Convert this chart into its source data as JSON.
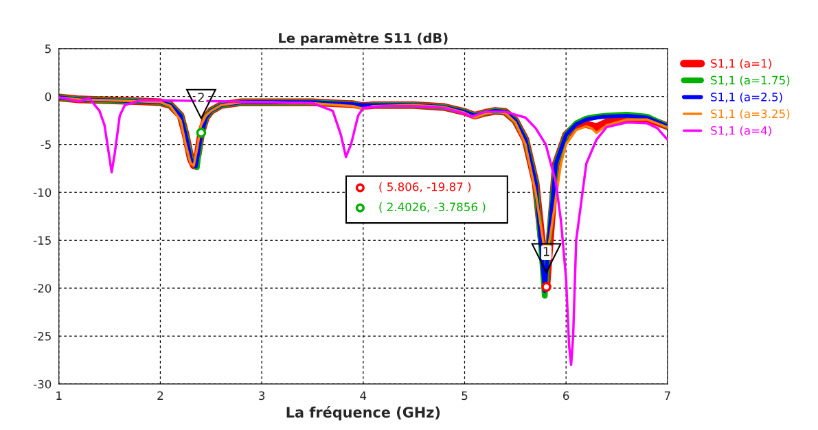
{
  "chart_data": {
    "type": "line",
    "title": "Le paramètre S11 (dB)",
    "xlabel": "La fréquence (GHz)",
    "xlim": [
      1,
      7
    ],
    "xticks": [
      1,
      2,
      3,
      4,
      5,
      6,
      7
    ],
    "ylim": [
      -30,
      5
    ],
    "yticks": [
      -30,
      -25,
      -20,
      -15,
      -10,
      -5,
      0,
      5
    ],
    "grid": true,
    "legend": "right",
    "line_style": "solid",
    "marker": "none",
    "series": [
      {
        "name": "S1,1 (a=1)",
        "color": "#ff0000",
        "x": [
          1.0,
          1.2,
          1.5,
          1.8,
          2.0,
          2.1,
          2.2,
          2.25,
          2.3,
          2.33,
          2.37,
          2.4026,
          2.45,
          2.5,
          2.6,
          2.8,
          3.0,
          3.5,
          3.9,
          4.0,
          4.1,
          4.5,
          4.8,
          5.0,
          5.1,
          5.2,
          5.3,
          5.4,
          5.5,
          5.6,
          5.7,
          5.76,
          5.806,
          5.84,
          5.9,
          6.0,
          6.1,
          6.2,
          6.3,
          6.4,
          6.6,
          6.8,
          7.0
        ],
        "values": [
          -0.1,
          -0.3,
          -0.4,
          -0.5,
          -0.6,
          -0.9,
          -2,
          -4,
          -6.5,
          -7.2,
          -6,
          -3.8,
          -2.2,
          -1.5,
          -0.9,
          -0.6,
          -0.6,
          -0.6,
          -0.8,
          -1.0,
          -0.9,
          -0.9,
          -1.1,
          -1.6,
          -2.0,
          -1.7,
          -1.5,
          -1.6,
          -2.5,
          -4.5,
          -9,
          -15,
          -19.87,
          -15,
          -7,
          -4,
          -3,
          -2.9,
          -3.2,
          -2.7,
          -2.3,
          -2.3,
          -3.1
        ]
      },
      {
        "name": "S1,1 (a=1.75)",
        "color": "#00b000",
        "x": [
          1.0,
          1.2,
          1.5,
          1.8,
          2.0,
          2.1,
          2.2,
          2.25,
          2.3,
          2.36,
          2.4,
          2.45,
          2.5,
          2.6,
          2.8,
          3.0,
          3.5,
          3.9,
          4.0,
          4.1,
          4.5,
          4.8,
          5.0,
          5.1,
          5.2,
          5.3,
          5.4,
          5.5,
          5.6,
          5.7,
          5.75,
          5.79,
          5.83,
          5.9,
          6.0,
          6.1,
          6.2,
          6.3,
          6.4,
          6.6,
          6.8,
          7.0
        ],
        "values": [
          -0.1,
          -0.3,
          -0.4,
          -0.5,
          -0.6,
          -0.9,
          -2,
          -4,
          -6.5,
          -7.4,
          -4,
          -2.2,
          -1.5,
          -0.9,
          -0.6,
          -0.6,
          -0.6,
          -0.8,
          -1.0,
          -0.9,
          -0.9,
          -1.1,
          -1.6,
          -2.0,
          -1.7,
          -1.5,
          -1.6,
          -2.5,
          -4.5,
          -9,
          -15,
          -20.8,
          -15,
          -7,
          -4,
          -2.8,
          -2.3,
          -2.1,
          -2.0,
          -1.9,
          -2.1,
          -3.1
        ]
      },
      {
        "name": "S1,1 (a=2.5)",
        "color": "#0000ff",
        "x": [
          1.0,
          1.2,
          1.5,
          1.8,
          2.0,
          2.1,
          2.2,
          2.25,
          2.3,
          2.35,
          2.4,
          2.45,
          2.5,
          2.6,
          2.8,
          3.0,
          3.5,
          3.9,
          4.0,
          4.1,
          4.5,
          4.8,
          5.0,
          5.1,
          5.2,
          5.3,
          5.4,
          5.5,
          5.6,
          5.7,
          5.75,
          5.79,
          5.83,
          5.9,
          6.0,
          6.1,
          6.2,
          6.3,
          6.4,
          6.6,
          6.8,
          7.0
        ],
        "values": [
          -0.1,
          -0.3,
          -0.4,
          -0.5,
          -0.6,
          -0.9,
          -2,
          -4,
          -6.5,
          -7.3,
          -4.2,
          -2.2,
          -1.5,
          -0.9,
          -0.6,
          -0.6,
          -0.6,
          -0.8,
          -0.9,
          -0.9,
          -0.9,
          -1.1,
          -1.6,
          -2.0,
          -1.7,
          -1.5,
          -1.6,
          -2.5,
          -4.5,
          -9,
          -15,
          -20.3,
          -15,
          -7,
          -4,
          -2.9,
          -2.4,
          -2.2,
          -2.1,
          -2.0,
          -2.2,
          -3.1
        ]
      },
      {
        "name": "S1,1 (a=3.25)",
        "color": "#ff8000",
        "x": [
          1.0,
          1.2,
          1.5,
          1.8,
          2.0,
          2.1,
          2.2,
          2.25,
          2.3,
          2.33,
          2.37,
          2.4,
          2.45,
          2.5,
          2.6,
          2.8,
          3.0,
          3.5,
          3.9,
          4.0,
          4.1,
          4.5,
          4.8,
          5.0,
          5.1,
          5.2,
          5.3,
          5.4,
          5.5,
          5.6,
          5.7,
          5.78,
          5.83,
          5.88,
          5.95,
          6.0,
          6.1,
          6.2,
          6.25,
          6.3,
          6.4,
          6.6,
          6.8,
          7.0
        ],
        "values": [
          -0.1,
          -0.3,
          -0.4,
          -0.5,
          -0.6,
          -1.0,
          -2.5,
          -5,
          -7.0,
          -7.2,
          -5,
          -3.0,
          -2.0,
          -1.5,
          -0.9,
          -0.6,
          -0.6,
          -0.7,
          -1.0,
          -1.3,
          -1.0,
          -0.9,
          -1.1,
          -1.7,
          -2.2,
          -1.8,
          -1.6,
          -1.7,
          -2.7,
          -5,
          -10,
          -15.5,
          -15.5,
          -12,
          -7,
          -5,
          -3.5,
          -3.1,
          -3.3,
          -3.8,
          -3.0,
          -2.4,
          -2.4,
          -3.2
        ]
      },
      {
        "name": "S1,1 (a=4)",
        "color": "#ff00ff",
        "x": [
          1.0,
          1.1,
          1.2,
          1.3,
          1.4,
          1.45,
          1.5,
          1.52,
          1.55,
          1.6,
          1.65,
          1.8,
          2.0,
          2.6,
          3.0,
          3.5,
          3.7,
          3.78,
          3.83,
          3.88,
          3.95,
          4.0,
          4.2,
          4.5,
          4.8,
          5.0,
          5.07,
          5.2,
          5.4,
          5.6,
          5.7,
          5.8,
          5.9,
          5.95,
          6.0,
          6.03,
          6.05,
          6.07,
          6.1,
          6.2,
          6.3,
          6.4,
          6.6,
          6.8,
          6.9,
          7.0
        ],
        "values": [
          -0.1,
          -0.3,
          -0.5,
          -0.2,
          -1.5,
          -3,
          -6.5,
          -7.9,
          -6,
          -2,
          -0.9,
          -0.4,
          -0.4,
          -0.5,
          -0.6,
          -0.7,
          -1.5,
          -4,
          -6.3,
          -5,
          -2,
          -1.2,
          -1.0,
          -1.0,
          -1.2,
          -1.8,
          -2.1,
          -1.6,
          -1.6,
          -2.2,
          -3.3,
          -5,
          -9,
          -13,
          -19,
          -26,
          -28,
          -25,
          -15,
          -7,
          -4.5,
          -3.2,
          -2.7,
          -2.8,
          -3.3,
          -4.5
        ]
      }
    ],
    "annotations": [
      {
        "text": "1",
        "x": 5.806,
        "y": -19.87
      },
      {
        "text": "2",
        "x": 2.4026,
        "y": -3.7856
      },
      "( 5.806, -19.87 )",
      "( 2.4026, -3.7856 )"
    ]
  }
}
